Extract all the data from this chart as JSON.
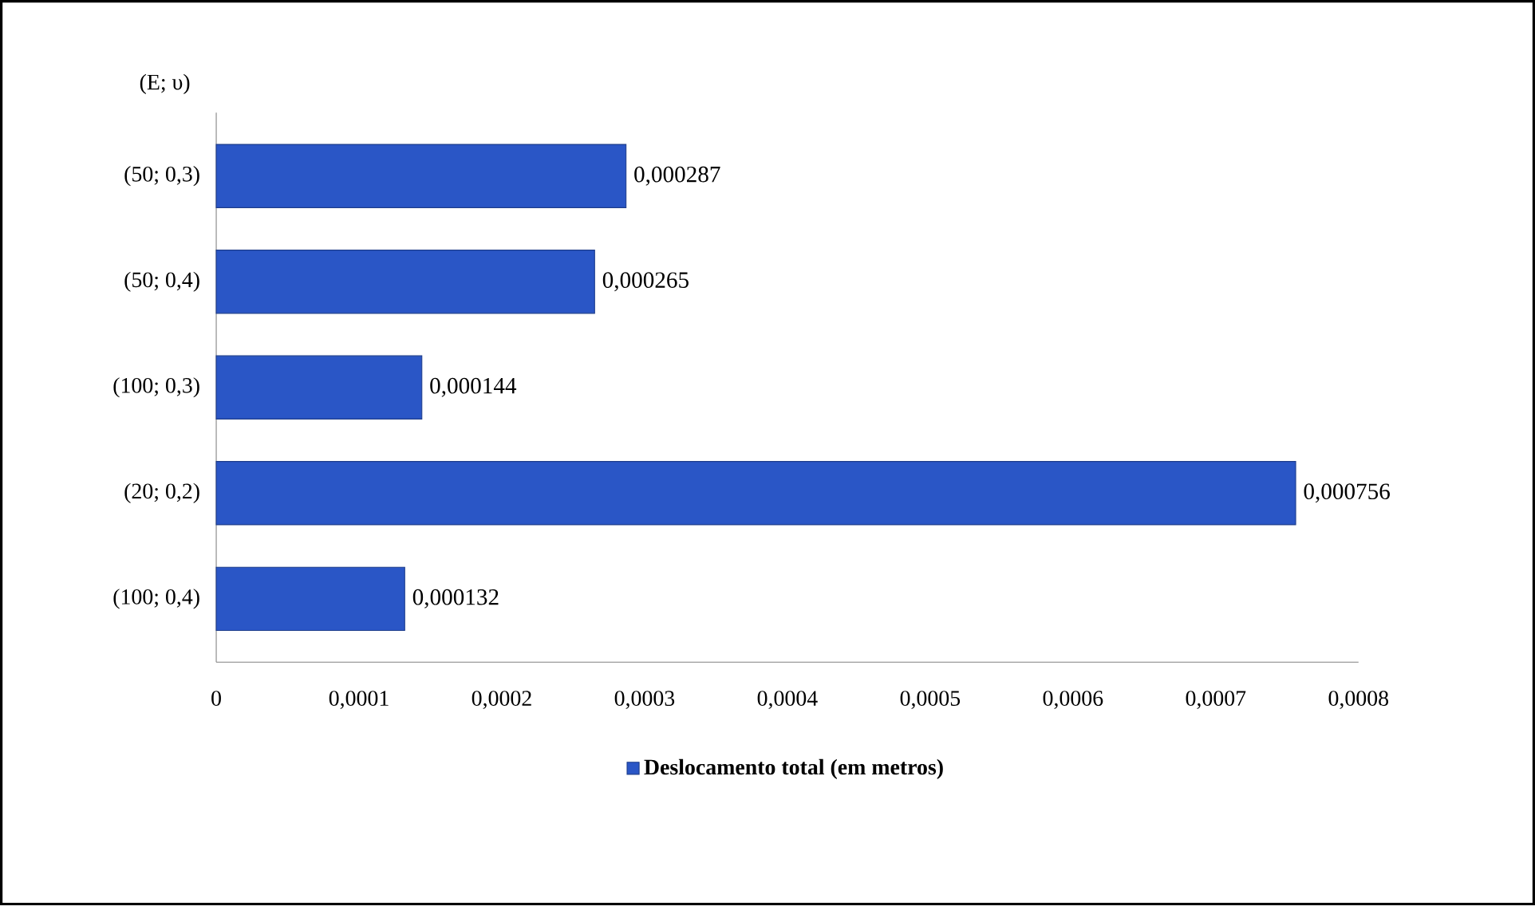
{
  "chart_data": {
    "type": "bar",
    "orientation": "horizontal",
    "ylabel": "(E; υ)",
    "categories": [
      "(50; 0,3)",
      "(50; 0,4)",
      "(100; 0,3)",
      "(20; 0,2)",
      "(100; 0,4)"
    ],
    "series": [
      {
        "name": "Deslocamento total  (em metros)",
        "color": "#2a56c6",
        "values": [
          0.000287,
          0.000265,
          0.000144,
          0.000756,
          0.000132
        ],
        "value_labels": [
          "0,000287",
          "0,000265",
          "0,000144",
          "0,000756",
          "0,000132"
        ]
      }
    ],
    "xlim": [
      0,
      0.0008
    ],
    "xticks": [
      0,
      {
        "value": 0.0001,
        "label": "0,0001"
      },
      {
        "value": 0.0002,
        "label": "0,0002"
      },
      {
        "value": 0.0003,
        "label": "0,0003"
      },
      {
        "value": 0.0004,
        "label": "0,0004"
      },
      {
        "value": 0.0005,
        "label": "0,0005"
      },
      {
        "value": 0.0006,
        "label": "0,0006"
      },
      {
        "value": 0.0007,
        "label": "0,0007"
      },
      {
        "value": 0.0008,
        "label": "0,0008"
      }
    ],
    "legend": "bottom"
  }
}
